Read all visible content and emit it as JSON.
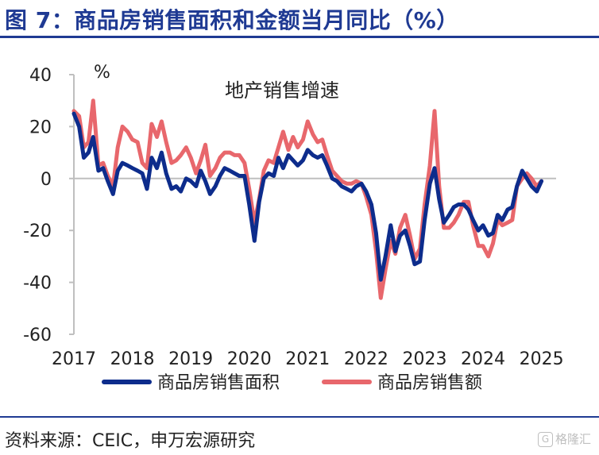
{
  "figure_title": "图 7：商品房销售面积和金额当月同比（%）",
  "source_note": "资料来源：CEIC，申万宏源研究",
  "watermark": {
    "text": "格隆汇",
    "icon": "g-logo"
  },
  "colors": {
    "title": "#1f3a93",
    "area_series": "#0d2c8c",
    "amount_series": "#e8676c",
    "axis": "#bfbfbf"
  },
  "chart_data": {
    "type": "line",
    "title": "地产销售增速",
    "ylabel": "%",
    "xlabel": "",
    "ylim": [
      -60,
      40
    ],
    "yticks": [
      40,
      20,
      0,
      -20,
      -40,
      -60
    ],
    "xlim": [
      2017,
      2025.25
    ],
    "xticks": [
      "2017",
      "2018",
      "2019",
      "2020",
      "2021",
      "2022",
      "2023",
      "2024",
      "2025"
    ],
    "grid": false,
    "zero_line": true,
    "legend_position": "bottom",
    "series": [
      {
        "name": "商品房销售面积",
        "color": "#0d2c8c",
        "points": [
          [
            2017.0,
            25
          ],
          [
            2017.09,
            20
          ],
          [
            2017.17,
            8
          ],
          [
            2017.25,
            10
          ],
          [
            2017.33,
            16
          ],
          [
            2017.42,
            3
          ],
          [
            2017.5,
            4
          ],
          [
            2017.58,
            -1
          ],
          [
            2017.67,
            -6
          ],
          [
            2017.75,
            3
          ],
          [
            2017.83,
            6
          ],
          [
            2017.92,
            5
          ],
          [
            2018.0,
            4
          ],
          [
            2018.09,
            3
          ],
          [
            2018.17,
            2
          ],
          [
            2018.25,
            -4
          ],
          [
            2018.33,
            8
          ],
          [
            2018.42,
            4
          ],
          [
            2018.5,
            10
          ],
          [
            2018.58,
            2
          ],
          [
            2018.67,
            -4
          ],
          [
            2018.75,
            -3
          ],
          [
            2018.83,
            -5
          ],
          [
            2018.92,
            0
          ],
          [
            2019.0,
            -1
          ],
          [
            2019.09,
            -3
          ],
          [
            2019.17,
            3
          ],
          [
            2019.25,
            -1
          ],
          [
            2019.33,
            -6
          ],
          [
            2019.42,
            -3
          ],
          [
            2019.5,
            1
          ],
          [
            2019.58,
            4
          ],
          [
            2019.67,
            3
          ],
          [
            2019.75,
            2
          ],
          [
            2019.83,
            1
          ],
          [
            2019.92,
            1
          ],
          [
            2020.0,
            -10
          ],
          [
            2020.09,
            -24
          ],
          [
            2020.17,
            -9
          ],
          [
            2020.25,
            0
          ],
          [
            2020.33,
            2
          ],
          [
            2020.42,
            1
          ],
          [
            2020.5,
            8
          ],
          [
            2020.58,
            4
          ],
          [
            2020.67,
            9
          ],
          [
            2020.75,
            7
          ],
          [
            2020.83,
            5
          ],
          [
            2020.92,
            7
          ],
          [
            2021.0,
            11
          ],
          [
            2021.09,
            9
          ],
          [
            2021.17,
            8
          ],
          [
            2021.25,
            9
          ],
          [
            2021.33,
            5
          ],
          [
            2021.42,
            0
          ],
          [
            2021.5,
            -1
          ],
          [
            2021.58,
            -3
          ],
          [
            2021.67,
            -4
          ],
          [
            2021.75,
            -5
          ],
          [
            2021.83,
            -3
          ],
          [
            2021.92,
            -2
          ],
          [
            2022.0,
            -5
          ],
          [
            2022.09,
            -10
          ],
          [
            2022.17,
            -21
          ],
          [
            2022.25,
            -39
          ],
          [
            2022.33,
            -30
          ],
          [
            2022.42,
            -18
          ],
          [
            2022.5,
            -28
          ],
          [
            2022.58,
            -22
          ],
          [
            2022.67,
            -20
          ],
          [
            2022.75,
            -26
          ],
          [
            2022.83,
            -33
          ],
          [
            2022.92,
            -32
          ],
          [
            2023.0,
            -16
          ],
          [
            2023.09,
            -2
          ],
          [
            2023.17,
            4
          ],
          [
            2023.25,
            -8
          ],
          [
            2023.33,
            -17
          ],
          [
            2023.42,
            -14
          ],
          [
            2023.5,
            -11
          ],
          [
            2023.58,
            -10
          ],
          [
            2023.67,
            -10
          ],
          [
            2023.75,
            -12
          ],
          [
            2023.83,
            -16
          ],
          [
            2023.92,
            -20
          ],
          [
            2024.0,
            -18
          ],
          [
            2024.09,
            -22
          ],
          [
            2024.17,
            -21
          ],
          [
            2024.25,
            -14
          ],
          [
            2024.33,
            -16
          ],
          [
            2024.42,
            -12
          ],
          [
            2024.5,
            -11
          ],
          [
            2024.58,
            -3
          ],
          [
            2024.67,
            3
          ],
          [
            2024.75,
            0
          ],
          [
            2024.83,
            -3
          ],
          [
            2024.92,
            -5
          ],
          [
            2025.0,
            -1
          ]
        ]
      },
      {
        "name": "商品房销售额",
        "color": "#e8676c",
        "points": [
          [
            2017.0,
            26
          ],
          [
            2017.09,
            24
          ],
          [
            2017.17,
            12
          ],
          [
            2017.25,
            14
          ],
          [
            2017.33,
            30
          ],
          [
            2017.42,
            5
          ],
          [
            2017.5,
            6
          ],
          [
            2017.58,
            1
          ],
          [
            2017.67,
            -3
          ],
          [
            2017.75,
            12
          ],
          [
            2017.83,
            20
          ],
          [
            2017.92,
            18
          ],
          [
            2018.0,
            15
          ],
          [
            2018.09,
            14
          ],
          [
            2018.17,
            6
          ],
          [
            2018.25,
            4
          ],
          [
            2018.33,
            21
          ],
          [
            2018.42,
            16
          ],
          [
            2018.5,
            22
          ],
          [
            2018.58,
            14
          ],
          [
            2018.67,
            6
          ],
          [
            2018.75,
            7
          ],
          [
            2018.83,
            9
          ],
          [
            2018.92,
            12
          ],
          [
            2019.0,
            8
          ],
          [
            2019.09,
            2
          ],
          [
            2019.17,
            7
          ],
          [
            2019.25,
            13
          ],
          [
            2019.33,
            1
          ],
          [
            2019.42,
            4
          ],
          [
            2019.5,
            8
          ],
          [
            2019.58,
            10
          ],
          [
            2019.67,
            10
          ],
          [
            2019.75,
            9
          ],
          [
            2019.83,
            9
          ],
          [
            2019.92,
            6
          ],
          [
            2020.0,
            -4
          ],
          [
            2020.09,
            -17
          ],
          [
            2020.17,
            -8
          ],
          [
            2020.25,
            3
          ],
          [
            2020.33,
            7
          ],
          [
            2020.42,
            6
          ],
          [
            2020.5,
            12
          ],
          [
            2020.58,
            18
          ],
          [
            2020.67,
            11
          ],
          [
            2020.75,
            16
          ],
          [
            2020.83,
            12
          ],
          [
            2020.92,
            15
          ],
          [
            2021.0,
            22
          ],
          [
            2021.09,
            17
          ],
          [
            2021.17,
            14
          ],
          [
            2021.25,
            15
          ],
          [
            2021.33,
            9
          ],
          [
            2021.42,
            3
          ],
          [
            2021.5,
            1
          ],
          [
            2021.58,
            -1
          ],
          [
            2021.67,
            -2
          ],
          [
            2021.75,
            -2
          ],
          [
            2021.83,
            -1
          ],
          [
            2021.92,
            -2
          ],
          [
            2022.0,
            -7
          ],
          [
            2022.09,
            -14
          ],
          [
            2022.17,
            -28
          ],
          [
            2022.25,
            -46
          ],
          [
            2022.33,
            -35
          ],
          [
            2022.42,
            -24
          ],
          [
            2022.5,
            -29
          ],
          [
            2022.58,
            -19
          ],
          [
            2022.67,
            -14
          ],
          [
            2022.75,
            -22
          ],
          [
            2022.83,
            -31
          ],
          [
            2022.92,
            -27
          ],
          [
            2023.0,
            -10
          ],
          [
            2023.09,
            5
          ],
          [
            2023.17,
            26
          ],
          [
            2023.25,
            -3
          ],
          [
            2023.33,
            -19
          ],
          [
            2023.42,
            -19
          ],
          [
            2023.5,
            -17
          ],
          [
            2023.58,
            -14
          ],
          [
            2023.67,
            -9
          ],
          [
            2023.75,
            -9
          ],
          [
            2023.83,
            -18
          ],
          [
            2023.92,
            -26
          ],
          [
            2024.0,
            -26
          ],
          [
            2024.09,
            -30
          ],
          [
            2024.17,
            -25
          ],
          [
            2024.25,
            -16
          ],
          [
            2024.33,
            -18
          ],
          [
            2024.42,
            -17
          ],
          [
            2024.5,
            -16
          ],
          [
            2024.58,
            -3
          ],
          [
            2024.67,
            0
          ],
          [
            2024.75,
            2
          ],
          [
            2024.83,
            0
          ],
          [
            2024.92,
            -3
          ],
          [
            2025.0,
            -1
          ]
        ]
      }
    ]
  }
}
